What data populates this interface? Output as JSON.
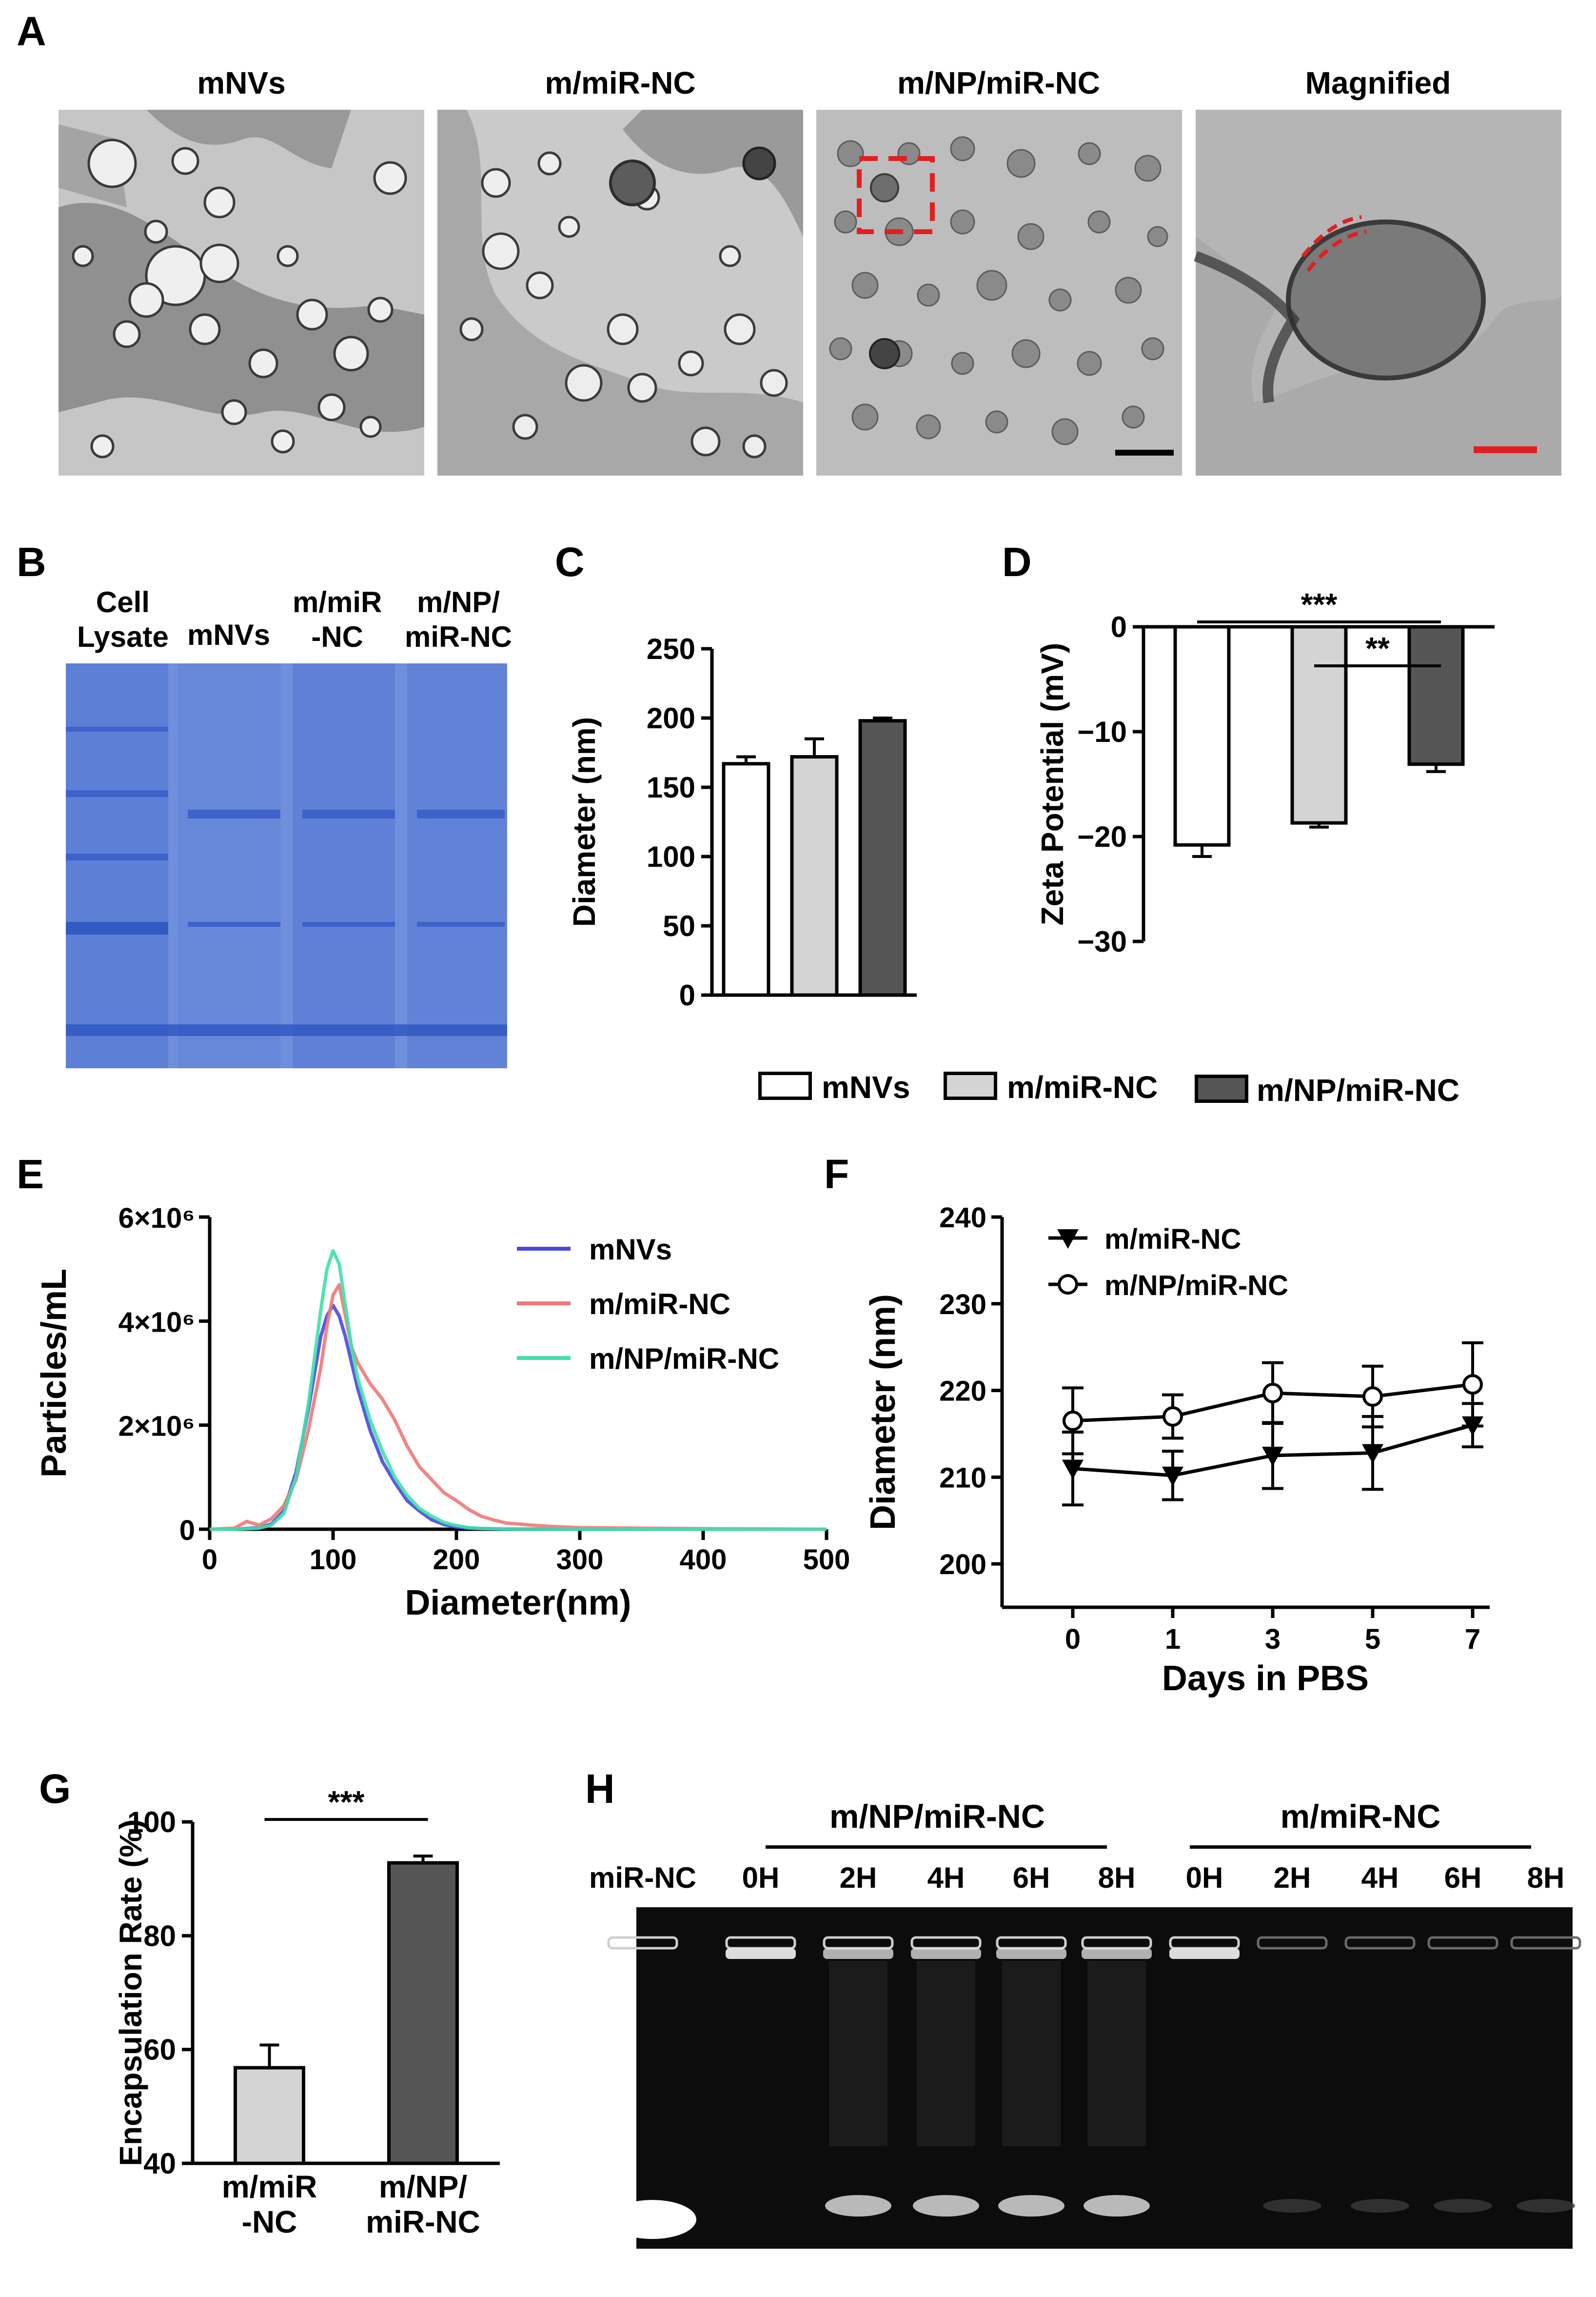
{
  "panels": {
    "A": {
      "letter": "A",
      "images": [
        {
          "title": "mNVs"
        },
        {
          "title": "m/miR-NC"
        },
        {
          "title": "m/NP/miR-NC"
        },
        {
          "title": "Magnified"
        }
      ]
    },
    "B": {
      "letter": "B",
      "lanes": [
        "Cell\nLysate",
        "mNVs",
        "m/miR\n-NC",
        "m/NP/\nmiR-NC"
      ]
    },
    "H": {
      "letter": "H",
      "group1": "m/NP/miR-NC",
      "group2": "m/miR-NC",
      "lanes": [
        "miR-NC",
        "0H",
        "2H",
        "4H",
        "6H",
        "8H",
        "0H",
        "2H",
        "4H",
        "6H",
        "8H"
      ]
    }
  },
  "legend_CD": {
    "items": [
      "mNVs",
      "m/miR-NC",
      "m/NP/miR-NC"
    ],
    "fills": [
      "#ffffff",
      "#d4d4d4",
      "#555555"
    ]
  },
  "chart_data": [
    {
      "panel": "C",
      "type": "bar",
      "categories": [
        "mNVs",
        "m/miR-NC",
        "m/NP/miR-NC"
      ],
      "values": [
        167,
        172,
        198
      ],
      "errors": [
        5,
        13,
        2
      ],
      "ylabel": "Diameter (nm)",
      "ylim": [
        0,
        250
      ],
      "yticks": [
        0,
        50,
        100,
        150,
        200,
        250
      ],
      "colors": [
        "#ffffff",
        "#d4d4d4",
        "#555555"
      ]
    },
    {
      "panel": "D",
      "type": "bar",
      "categories": [
        "mNVs",
        "m/miR-NC",
        "m/NP/miR-NC"
      ],
      "values": [
        -20.8,
        -18.7,
        -13.1
      ],
      "errors": [
        1.1,
        0.4,
        0.7
      ],
      "ylabel": "Zeta Potential (mV)",
      "ylim": [
        -30,
        0
      ],
      "yticks": [
        0,
        -10,
        -20,
        -30
      ],
      "significance": [
        {
          "from": 0,
          "to": 2,
          "label": "***"
        },
        {
          "from": 1,
          "to": 2,
          "label": "**"
        }
      ],
      "colors": [
        "#ffffff",
        "#d4d4d4",
        "#555555"
      ]
    },
    {
      "panel": "E",
      "type": "line",
      "xlabel": "Diameter(nm)",
      "ylabel": "Particles/mL",
      "xlim": [
        0,
        500
      ],
      "xticks": [
        0,
        100,
        200,
        300,
        400,
        500
      ],
      "ylim": [
        0,
        6000000
      ],
      "yticks": [
        0,
        2000000,
        4000000,
        6000000
      ],
      "ytick_labels": [
        "0",
        "2×10⁶",
        "4×10⁶",
        "6×10⁶"
      ],
      "series": [
        {
          "name": "mNVs",
          "color": "#4848e0",
          "x": [
            0,
            20,
            40,
            50,
            60,
            70,
            80,
            90,
            95,
            100,
            105,
            110,
            115,
            120,
            130,
            140,
            150,
            160,
            170,
            180,
            190,
            200,
            210,
            220,
            240,
            260,
            300,
            400,
            500
          ],
          "y": [
            0,
            0,
            30000,
            100000,
            350000,
            1100000,
            2300000,
            3700000,
            4100000,
            4300000,
            4100000,
            3700000,
            3200000,
            2700000,
            1900000,
            1300000,
            900000,
            550000,
            350000,
            180000,
            90000,
            40000,
            20000,
            10000,
            5000,
            2000,
            0,
            0,
            0
          ]
        },
        {
          "name": "m/miR-NC",
          "color": "#f07878",
          "x": [
            0,
            20,
            30,
            40,
            50,
            60,
            70,
            80,
            90,
            95,
            100,
            105,
            110,
            115,
            120,
            130,
            140,
            150,
            160,
            170,
            180,
            190,
            200,
            210,
            220,
            230,
            240,
            250,
            260,
            280,
            300,
            350,
            400,
            450,
            500
          ],
          "y": [
            0,
            20000,
            150000,
            80000,
            200000,
            450000,
            950000,
            1900000,
            3100000,
            3900000,
            4500000,
            4700000,
            4100000,
            3500000,
            3200000,
            2800000,
            2500000,
            2100000,
            1600000,
            1200000,
            950000,
            700000,
            550000,
            380000,
            250000,
            180000,
            120000,
            100000,
            80000,
            50000,
            30000,
            20000,
            10000,
            5000,
            0
          ]
        },
        {
          "name": "m/NP/miR-NC",
          "color": "#3fe0a8",
          "x": [
            0,
            20,
            40,
            50,
            60,
            70,
            80,
            90,
            95,
            100,
            105,
            110,
            115,
            120,
            130,
            140,
            150,
            160,
            170,
            180,
            190,
            200,
            210,
            220,
            240,
            260,
            300,
            400,
            500
          ],
          "y": [
            0,
            0,
            20000,
            80000,
            300000,
            1000000,
            2400000,
            4200000,
            5000000,
            5350000,
            5100000,
            4300000,
            3500000,
            2900000,
            2100000,
            1500000,
            1000000,
            650000,
            400000,
            250000,
            130000,
            70000,
            30000,
            15000,
            5000,
            2000,
            0,
            0,
            0
          ]
        }
      ]
    },
    {
      "panel": "F",
      "type": "line",
      "xlabel": "Days in PBS",
      "ylabel": "Diameter (nm)",
      "categories": [
        "0",
        "1",
        "3",
        "5",
        "7"
      ],
      "ylim": [
        195,
        240
      ],
      "yticks": [
        200,
        210,
        220,
        230,
        240
      ],
      "series": [
        {
          "name": "m/miR-NC",
          "marker": "triangle-down",
          "values": [
            211,
            210.2,
            212.5,
            212.8,
            216
          ],
          "errors": [
            4.2,
            2.8,
            3.8,
            4.2,
            2.5
          ]
        },
        {
          "name": "m/NP/miR-NC",
          "marker": "circle-open",
          "values": [
            216.5,
            217,
            219.7,
            219.3,
            220.7
          ],
          "errors": [
            3.8,
            2.5,
            3.5,
            3.5,
            4.8
          ]
        }
      ]
    },
    {
      "panel": "G",
      "type": "bar",
      "categories": [
        "m/miR\n-NC",
        "m/NP/\nmiR-NC"
      ],
      "values": [
        56.8,
        92.8
      ],
      "errors": [
        4,
        1.2
      ],
      "ylabel": "Encapsulation Rate (%)",
      "ylim": [
        40,
        100
      ],
      "yticks": [
        40,
        60,
        80,
        100
      ],
      "significance": [
        {
          "from": 0,
          "to": 1,
          "label": "***"
        }
      ],
      "colors": [
        "#d4d4d4",
        "#555555"
      ]
    }
  ]
}
